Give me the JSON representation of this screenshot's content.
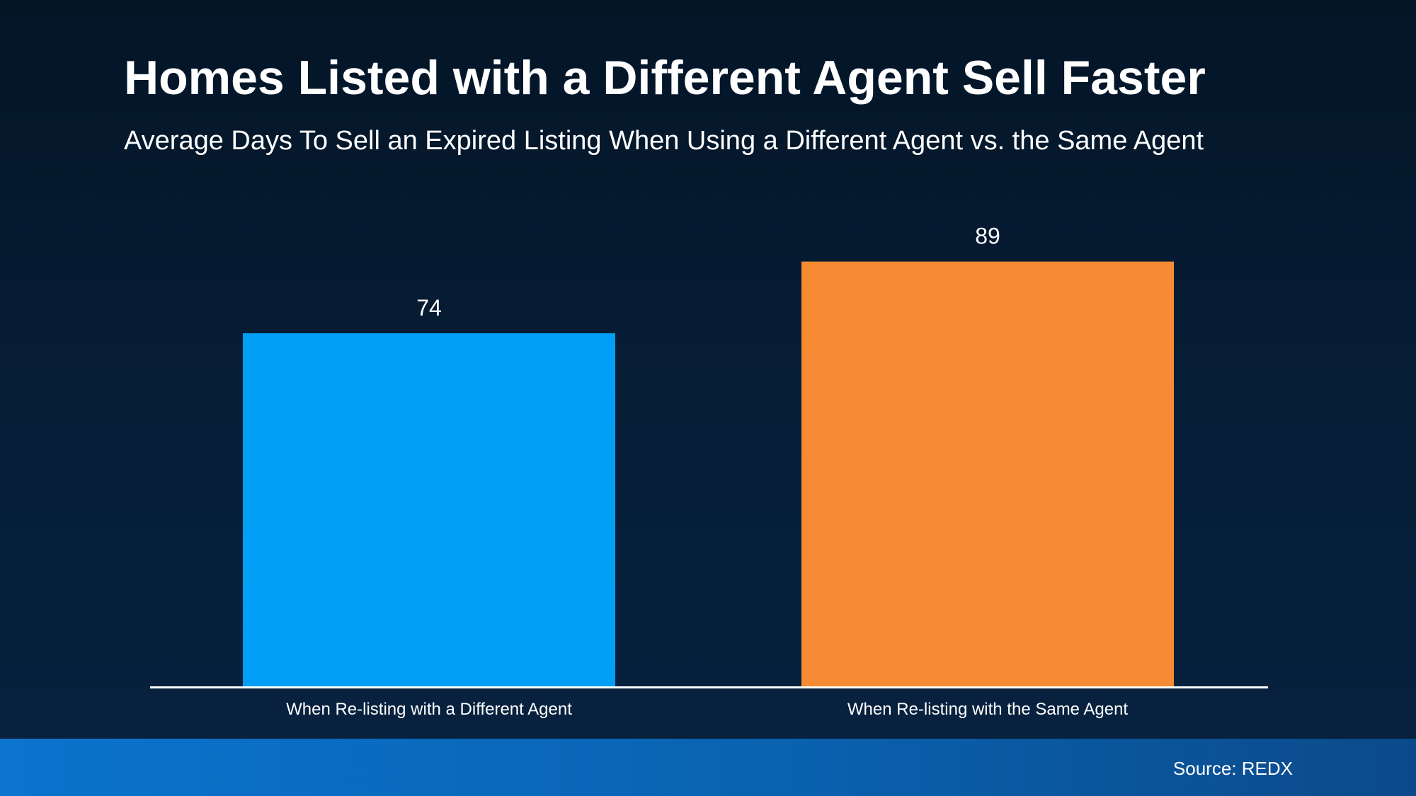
{
  "chart_data": {
    "type": "bar",
    "title": "Homes Listed with a Different Agent Sell Faster",
    "subtitle": "Average Days To Sell an Expired Listing When Using a Different Agent vs. the Same Agent",
    "categories": [
      "When Re-listing with a Different Agent",
      "When Re-listing with the Same Agent"
    ],
    "values": [
      74,
      89
    ],
    "data_labels": [
      "74",
      "89"
    ],
    "colors": [
      "#009ff5",
      "#f68b34"
    ],
    "ylim": [
      0,
      100
    ],
    "grid": false,
    "legend": "none",
    "xlabel": "",
    "ylabel": ""
  },
  "footer": {
    "source": "Source: REDX"
  },
  "colors": {
    "background": "#061d35",
    "footer_bar": "#0a62b0",
    "text": "#ffffff",
    "axis_line": "#ffffff"
  }
}
